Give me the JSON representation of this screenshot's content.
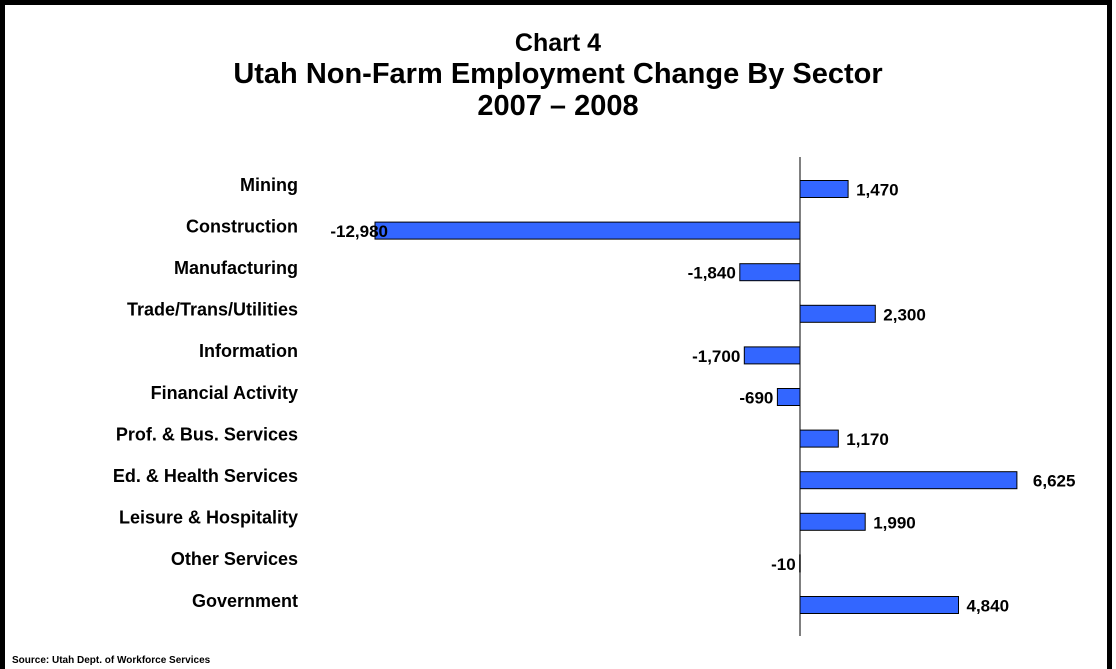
{
  "chart_data": {
    "type": "bar",
    "orientation": "horizontal",
    "title_line1": "Chart 4",
    "title_line2": "Utah Non-Farm Employment Change By Sector",
    "title_line3": "2007 – 2008",
    "source": "Source: Utah Dept. of Workforce Services",
    "bar_color": "#3366FF",
    "categories": [
      "Mining",
      "Construction",
      "Manufacturing",
      "Trade/Trans/Utilities",
      "Information",
      "Financial Activity",
      "Prof. & Bus. Services",
      "Ed. & Health Services",
      "Leisure & Hospitality",
      "Other Services",
      "Government"
    ],
    "values": [
      1470,
      -12980,
      -1840,
      2300,
      -1700,
      -690,
      1170,
      6625,
      1990,
      -10,
      4840
    ],
    "value_labels": [
      "1,470",
      "-12,980",
      "-1,840",
      "2,300",
      "-1,700",
      "-690",
      "1,170",
      "6,625",
      "1,990",
      "-10",
      "4,840"
    ],
    "grid": false,
    "legend": "none"
  }
}
